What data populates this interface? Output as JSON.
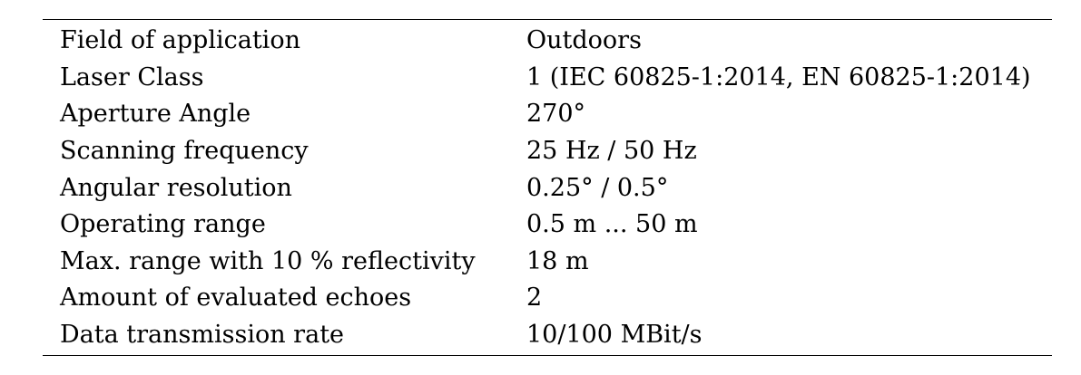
{
  "specs": [
    {
      "field": "Field of application",
      "value": "Outdoors"
    },
    {
      "field": "Laser Class",
      "value": "1 (IEC 60825-1:2014, EN 60825-1:2014)"
    },
    {
      "field": "Aperture Angle",
      "value": "270°"
    },
    {
      "field": "Scanning frequency",
      "value": "25 Hz / 50 Hz"
    },
    {
      "field": "Angular resolution",
      "value": "0.25° / 0.5°"
    },
    {
      "field": "Operating range",
      "value": "0.5 m ... 50 m"
    },
    {
      "field": "Max. range with 10 % reflectivity",
      "value": "18 m"
    },
    {
      "field": "Amount of evaluated echoes",
      "value": "2"
    },
    {
      "field": "Data transmission rate",
      "value": "10/100 MBit/s"
    }
  ]
}
